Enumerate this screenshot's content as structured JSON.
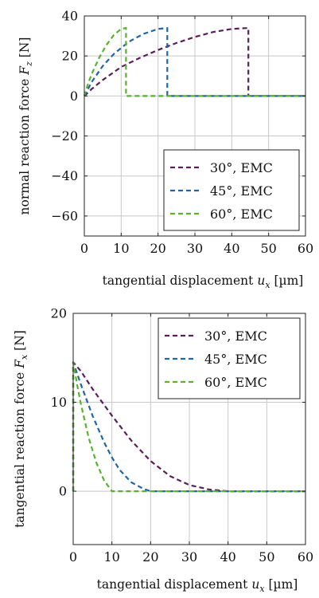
{
  "colors": {
    "purple": "#5a1f5a",
    "blue": "#1f66a6",
    "green": "#5ab12e",
    "grid": "#c8c8c8",
    "axis": "#222222"
  },
  "chart_data": [
    {
      "type": "line",
      "xlabel": "tangential displacement u_x [µm]",
      "ylabel": "normal reaction force F_z [N]",
      "xlim": [
        0,
        60
      ],
      "ylim": [
        -70,
        40
      ],
      "xticks": [
        "0",
        "10",
        "20",
        "30",
        "40",
        "50",
        "60"
      ],
      "yticks": [
        "−60",
        "−40",
        "−20",
        "0",
        "20",
        "40"
      ],
      "grid": true,
      "legend": "bottom-right",
      "series": [
        {
          "name": "30°, EMC",
          "color": "#5a1f5a",
          "dash": "dashed",
          "x": [
            0,
            2,
            5,
            10,
            15,
            20,
            25,
            30,
            35,
            40,
            44.5,
            44.5,
            60
          ],
          "y": [
            0,
            3.5,
            8,
            14.5,
            19,
            23,
            26.5,
            29.5,
            32,
            33.5,
            34,
            0,
            0
          ]
        },
        {
          "name": "45°, EMC",
          "color": "#1f66a6",
          "dash": "dashed",
          "x": [
            0,
            2,
            5,
            8,
            12,
            16,
            20,
            22.5,
            22.5,
            60
          ],
          "y": [
            0,
            7,
            15,
            21,
            27,
            31,
            33.5,
            34,
            0,
            0
          ]
        },
        {
          "name": "60°, EMC",
          "color": "#5ab12e",
          "dash": "dashed",
          "x": [
            0,
            1,
            2,
            4,
            6,
            8,
            10,
            11.3,
            11.3,
            60
          ],
          "y": [
            0,
            6,
            11,
            19,
            25.5,
            30.5,
            33.5,
            34,
            0,
            0
          ]
        }
      ]
    },
    {
      "type": "line",
      "xlabel": "tangential displacement u_x [µm]",
      "ylabel": "tangential reaction force F_x [N]",
      "xlim": [
        0,
        60
      ],
      "ylim": [
        -6,
        20
      ],
      "xticks": [
        "0",
        "10",
        "20",
        "30",
        "40",
        "50",
        "60"
      ],
      "yticks": [
        "0",
        "10",
        "20"
      ],
      "grid": true,
      "legend": "top-right",
      "series": [
        {
          "name": "30°, EMC",
          "color": "#5a1f5a",
          "dash": "dashed",
          "x": [
            0,
            0,
            2,
            5,
            10,
            15,
            20,
            25,
            30,
            35,
            40,
            45,
            50,
            55,
            60
          ],
          "y": [
            0,
            14.5,
            13.5,
            11.5,
            8.5,
            5.7,
            3.4,
            1.7,
            0.7,
            0.2,
            0,
            0,
            0,
            0,
            0
          ]
        },
        {
          "name": "45°, EMC",
          "color": "#1f66a6",
          "dash": "dashed",
          "x": [
            0,
            0,
            2,
            5,
            8,
            10,
            12,
            15,
            18,
            20,
            25,
            30,
            40,
            50,
            60
          ],
          "y": [
            0,
            14.5,
            12,
            8.5,
            5.5,
            3.8,
            2.4,
            1,
            0.3,
            0,
            0,
            0,
            0,
            0,
            0
          ]
        },
        {
          "name": "60°, EMC",
          "color": "#5ab12e",
          "dash": "dashed",
          "x": [
            0,
            0,
            1,
            2,
            4,
            6,
            8,
            10,
            15,
            20,
            30,
            40,
            50,
            60
          ],
          "y": [
            0,
            14.5,
            12,
            9.8,
            6,
            3.2,
            1.2,
            0,
            0,
            0,
            0,
            0,
            0,
            0
          ]
        }
      ]
    }
  ]
}
